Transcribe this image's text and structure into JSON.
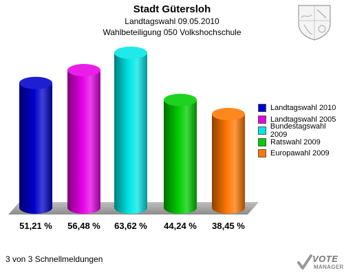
{
  "header": {
    "title": "Stadt Gütersloh",
    "subtitle1": "Landtagswahl 09.05.2010",
    "subtitle2": "Wahlbeteiligung 050 Volkshochschule"
  },
  "footer": {
    "text": "3 von 3 Schnellmeldungen"
  },
  "brand": {
    "line1": "VOTE",
    "line2": "MANAGER"
  },
  "chart_data": {
    "type": "bar",
    "categories": [
      "Landtagswahl 2010",
      "Landtagswahl 2005",
      "Bundestagswahl 2009",
      "Ratswahl 2009",
      "Europawahl 2009"
    ],
    "values": [
      51.21,
      56.48,
      63.62,
      44.24,
      38.45
    ],
    "value_labels": [
      "51,21 %",
      "56,48 %",
      "63,62 %",
      "44,24 %",
      "38,45 %"
    ],
    "colors": [
      "#0000cc",
      "#e600e6",
      "#00e6e6",
      "#00cc00",
      "#ff7700"
    ],
    "title": "Stadt Gütersloh",
    "xlabel": "",
    "ylabel": "",
    "legend": "right",
    "grid": false
  }
}
